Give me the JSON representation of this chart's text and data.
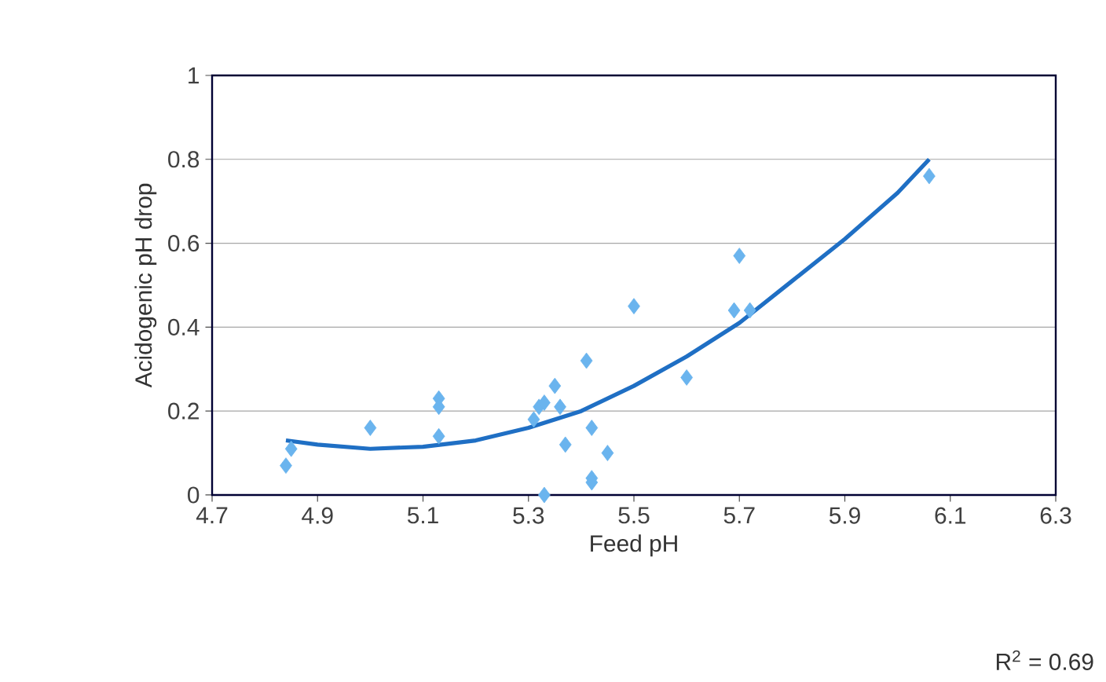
{
  "chart_data": {
    "type": "scatter",
    "xlabel": "Feed pH",
    "ylabel": "Acidogenic pH drop",
    "annotations": [
      "R$^{2}$ = 0.69"
    ],
    "xlim": [
      4.7,
      6.3
    ],
    "xticks": [
      4.7,
      4.9,
      5.1,
      5.3,
      5.5,
      5.7,
      5.9,
      6.1,
      6.3
    ],
    "ylim": [
      0,
      1
    ],
    "yticks": [
      0,
      0.2,
      0.4,
      0.6,
      0.8,
      1
    ],
    "grid": "y",
    "series": [
      {
        "marker": "diamond",
        "color": "#6ab4ee",
        "x": [
          4.84,
          4.85,
          5.0,
          5.13,
          5.13,
          5.13,
          5.31,
          5.32,
          5.33,
          5.35,
          5.36,
          5.37,
          5.33,
          5.41,
          5.42,
          5.42,
          5.42,
          5.45,
          5.5,
          5.6,
          5.69,
          5.7,
          5.72,
          6.06
        ],
        "values": [
          0.07,
          0.11,
          0.16,
          0.23,
          0.21,
          0.14,
          0.18,
          0.21,
          0.22,
          0.26,
          0.21,
          0.12,
          0.0,
          0.32,
          0.16,
          0.04,
          0.03,
          0.1,
          0.45,
          0.28,
          0.44,
          0.57,
          0.44,
          0.76
        ]
      },
      {
        "type": "line",
        "marker": "none",
        "color": "#1f6fc4",
        "x": [
          4.84,
          4.9,
          5.0,
          5.1,
          5.2,
          5.3,
          5.4,
          5.5,
          5.6,
          5.7,
          5.8,
          5.9,
          6.0,
          6.06
        ],
        "values": [
          0.13,
          0.12,
          0.11,
          0.115,
          0.13,
          0.16,
          0.2,
          0.26,
          0.33,
          0.41,
          0.51,
          0.61,
          0.72,
          0.8
        ]
      }
    ]
  }
}
